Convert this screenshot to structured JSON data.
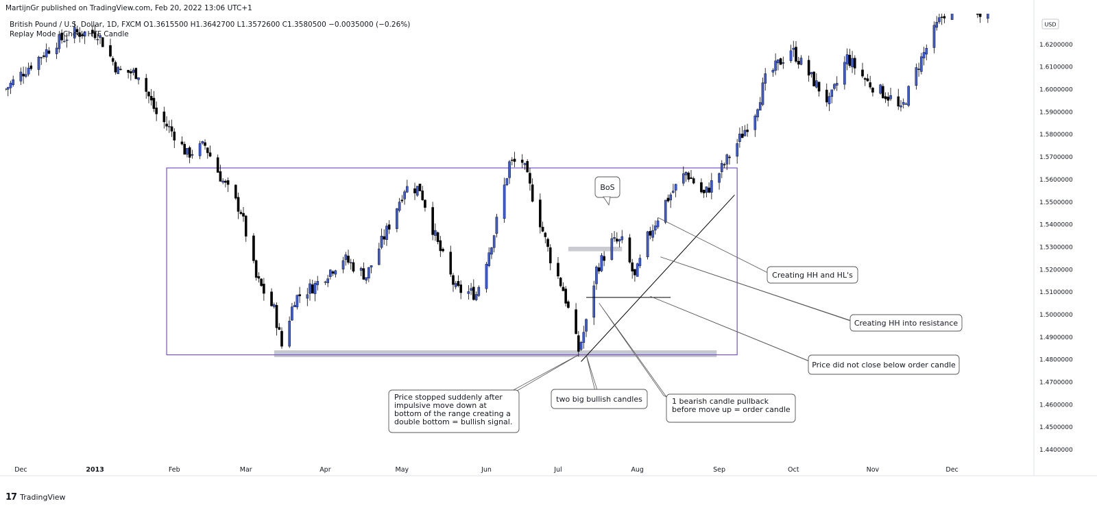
{
  "header": {
    "publisher": "MartijnGr published on TradingView.com, Feb 20, 2022 13:06 UTC+1",
    "symbol_line": "British Pound / U.S. Dollar, 1D, FXCM  O1.3615500  H1.3642700  L1.3572600  C1.3580500  −0.0035000 (−0.26%)",
    "replay_line": "Replay Mode - Check HTF Candle"
  },
  "footer": {
    "brand": "TradingView",
    "logo_icon": "tradingview-logo-icon"
  },
  "colors": {
    "bull": "#3b5bdb",
    "bear": "#000000",
    "range_box": "#7b4fc9",
    "zone": "#b2b5be",
    "grid": "#ffffff",
    "axis_text": "#131722"
  },
  "chart_data": {
    "type": "candlestick",
    "currency_label": "USD",
    "ylim": [
      1.435,
      1.6335
    ],
    "y_ticks": [
      "1.6200000",
      "1.6100000",
      "1.6000000",
      "1.5900000",
      "1.5800000",
      "1.5700000",
      "1.5600000",
      "1.5500000",
      "1.5400000",
      "1.5300000",
      "1.5200000",
      "1.5100000",
      "1.5000000",
      "1.4900000",
      "1.4800000",
      "1.4700000",
      "1.4600000",
      "1.4500000",
      "1.4400000"
    ],
    "x_ticks": [
      {
        "label": "Dec",
        "date": "2012-12-03"
      },
      {
        "label": "2013",
        "date": "2013-01-01"
      },
      {
        "label": "Feb",
        "date": "2013-02-01"
      },
      {
        "label": "Mar",
        "date": "2013-03-01"
      },
      {
        "label": "Apr",
        "date": "2013-04-01"
      },
      {
        "label": "May",
        "date": "2013-05-01"
      },
      {
        "label": "Jun",
        "date": "2013-06-03"
      },
      {
        "label": "Jul",
        "date": "2013-07-01"
      },
      {
        "label": "Aug",
        "date": "2013-08-01"
      },
      {
        "label": "Sep",
        "date": "2013-09-02"
      },
      {
        "label": "Oct",
        "date": "2013-10-01"
      },
      {
        "label": "Nov",
        "date": "2013-11-01"
      },
      {
        "label": "Dec",
        "date": "2013-12-02"
      }
    ],
    "x_range": [
      "2012-11-27",
      "2014-01-03"
    ],
    "path_points": [
      [
        "2012-11-27",
        1.6
      ],
      [
        "2012-12-07",
        1.611
      ],
      [
        "2012-12-17",
        1.621
      ],
      [
        "2012-12-24",
        1.625
      ],
      [
        "2013-01-02",
        1.625
      ],
      [
        "2013-01-10",
        1.608
      ],
      [
        "2013-01-18",
        1.607
      ],
      [
        "2013-01-25",
        1.589
      ],
      [
        "2013-02-01",
        1.58
      ],
      [
        "2013-02-06",
        1.571
      ],
      [
        "2013-02-13",
        1.575
      ],
      [
        "2013-02-20",
        1.559
      ],
      [
        "2013-02-27",
        1.546
      ],
      [
        "2013-03-05",
        1.516
      ],
      [
        "2013-03-12",
        1.502
      ],
      [
        "2013-03-15",
        1.486
      ],
      [
        "2013-03-20",
        1.507
      ],
      [
        "2013-03-28",
        1.513
      ],
      [
        "2013-04-08",
        1.525
      ],
      [
        "2013-04-17",
        1.517
      ],
      [
        "2013-04-25",
        1.537
      ],
      [
        "2013-05-02",
        1.556
      ],
      [
        "2013-05-08",
        1.556
      ],
      [
        "2013-05-15",
        1.531
      ],
      [
        "2013-05-22",
        1.511
      ],
      [
        "2013-05-30",
        1.509
      ],
      [
        "2013-06-06",
        1.536
      ],
      [
        "2013-06-12",
        1.567
      ],
      [
        "2013-06-17",
        1.568
      ],
      [
        "2013-06-24",
        1.541
      ],
      [
        "2013-06-28",
        1.525
      ],
      [
        "2013-07-03",
        1.511
      ],
      [
        "2013-07-09",
        1.484
      ],
      [
        "2013-07-12",
        1.496
      ],
      [
        "2013-07-16",
        1.52
      ],
      [
        "2013-07-22",
        1.532
      ],
      [
        "2013-07-26",
        1.532
      ],
      [
        "2013-07-31",
        1.516
      ],
      [
        "2013-08-05",
        1.534
      ],
      [
        "2013-08-12",
        1.55
      ],
      [
        "2013-08-20",
        1.563
      ],
      [
        "2013-08-27",
        1.553
      ],
      [
        "2013-09-02",
        1.563
      ],
      [
        "2013-09-09",
        1.576
      ],
      [
        "2013-09-16",
        1.59
      ],
      [
        "2013-09-20",
        1.604
      ],
      [
        "2013-09-30",
        1.618
      ],
      [
        "2013-10-08",
        1.605
      ],
      [
        "2013-10-15",
        1.594
      ],
      [
        "2013-10-22",
        1.614
      ],
      [
        "2013-10-30",
        1.603
      ],
      [
        "2013-11-08",
        1.596
      ],
      [
        "2013-11-12",
        1.59
      ],
      [
        "2013-11-19",
        1.611
      ],
      [
        "2013-11-26",
        1.628
      ],
      [
        "2013-12-03",
        1.642
      ],
      [
        "2013-12-13",
        1.635
      ],
      [
        "2013-12-31",
        1.65
      ]
    ],
    "levels": {
      "range_box": {
        "from": "2013-01-29",
        "to": "2013-09-09",
        "low": 1.482,
        "high": 1.565
      },
      "support_zone": {
        "from": "2013-03-12",
        "to": "2013-09-01",
        "low": 1.481,
        "high": 1.484
      },
      "resistance_zone": {
        "from": "2013-07-05",
        "to": "2013-07-26",
        "low": 1.528,
        "high": 1.53
      },
      "order_candle_line": {
        "from": "2013-07-12",
        "to": "2013-08-14",
        "value": 1.5075
      },
      "trendline": {
        "from": [
          "2013-07-10",
          1.479
        ],
        "to": [
          "2013-09-08",
          1.553
        ]
      }
    },
    "annotations": [
      {
        "id": "bos",
        "text": "BoS",
        "anchor": [
          "2013-07-24",
          1.54
        ]
      },
      {
        "id": "hh-hl",
        "text": "Creating HH and HL's",
        "anchor": [
          "2013-08-09",
          1.543
        ]
      },
      {
        "id": "hh-resistance",
        "text": "Creating HH into resistance",
        "anchor": [
          "2013-08-10",
          1.5255
        ]
      },
      {
        "id": "order-candle-hold",
        "text": "Price did not close below order candle",
        "anchor": [
          "2013-08-06",
          1.508
        ]
      },
      {
        "id": "double-bottom",
        "text": "Price stopped suddenly after impulsive move down at bottom of the range creating a double bottom =  bullish signal.",
        "anchor": [
          "2013-07-09",
          1.482
        ]
      },
      {
        "id": "bullish-candles",
        "text": "two big bullish candles",
        "anchor": [
          "2013-07-12",
          1.482
        ]
      },
      {
        "id": "bearish-pullback",
        "text": "1 bearish candle pullback before move up = order candle",
        "anchor": [
          "2013-07-17",
          1.505
        ]
      }
    ]
  }
}
